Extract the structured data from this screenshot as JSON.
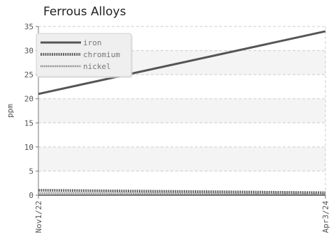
{
  "chart_data": {
    "type": "line",
    "title": "Ferrous Alloys",
    "xlabel": "",
    "ylabel": "ppm",
    "categories": [
      "Nov1/22",
      "Apr3/24"
    ],
    "ylim": [
      0,
      35
    ],
    "yticks": [
      0,
      5,
      10,
      15,
      20,
      25,
      30,
      35
    ],
    "grid": true,
    "legend_position": "top-left",
    "series": [
      {
        "name": "iron",
        "values": [
          21,
          34
        ],
        "color": "#555555",
        "style": "solid"
      },
      {
        "name": "chromium",
        "values": [
          1,
          0.5
        ],
        "color": "#666666",
        "style": "dotted"
      },
      {
        "name": "nickel",
        "values": [
          0.4,
          0.2
        ],
        "color": "#888888",
        "style": "dotted-thin"
      }
    ]
  }
}
